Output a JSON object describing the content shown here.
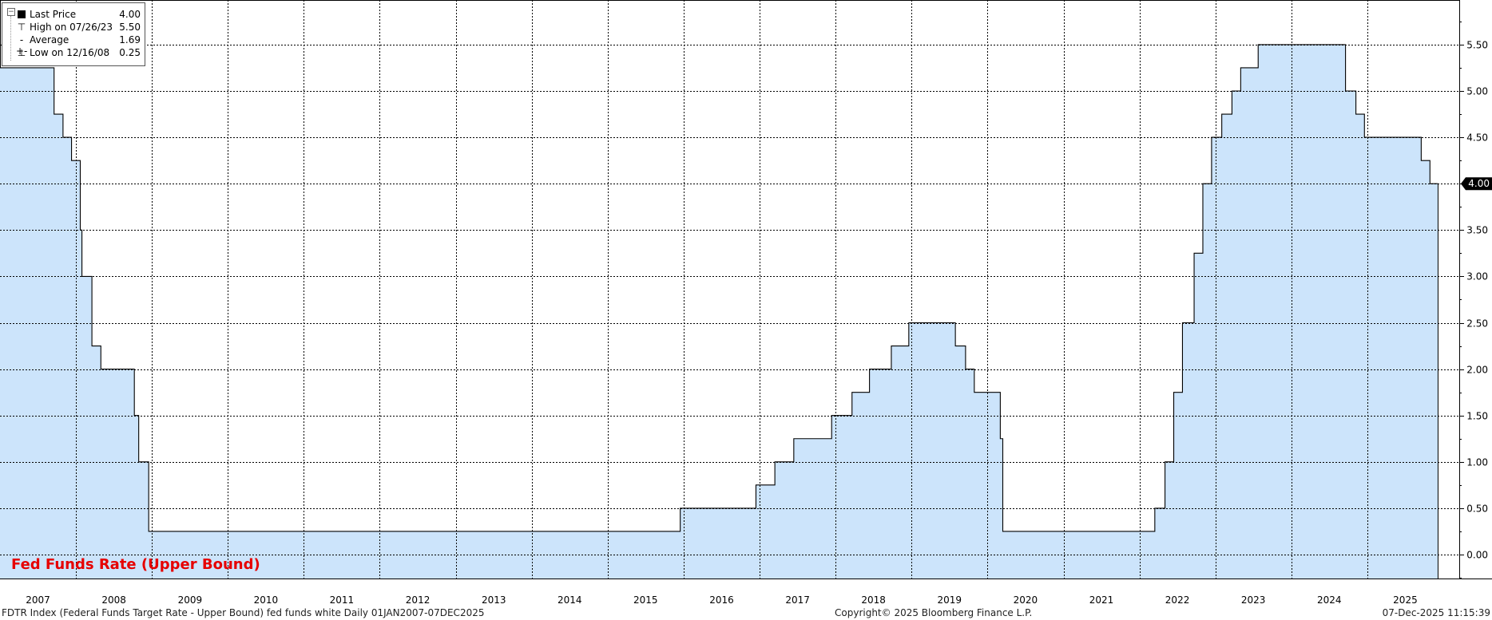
{
  "legend": {
    "last_price_label": "Last Price",
    "last_price_value": "4.00",
    "high_label": "High on 07/26/23",
    "high_value": "5.50",
    "average_label": "Average",
    "average_value": "1.69",
    "low_label": "Low on 12/16/08",
    "low_value": "0.25"
  },
  "footer": {
    "left": "FDTR Index (Federal Funds Target Rate - Upper Bound) fed funds white Daily 01JAN2007-07DEC2025",
    "center": "Copyright© 2025 Bloomberg Finance L.P.",
    "right": "07-Dec-2025 11:15:39"
  },
  "colors": {
    "fill": "#cce4fb",
    "line": "#000000",
    "title": "#e60000",
    "grid": "#000000",
    "last_price_tag_bg": "#000000",
    "last_price_tag_text": "#ffffff"
  },
  "chart_data": {
    "type": "area",
    "title": "Fed Funds Rate (Upper Bound)",
    "xlabel": "",
    "ylabel": "",
    "x_range": [
      "2007-01-01",
      "2025-12-07"
    ],
    "ylim": [
      -0.25,
      6.0
    ],
    "y_ticks": [
      0.0,
      0.5,
      1.0,
      1.5,
      2.0,
      2.5,
      3.0,
      3.5,
      4.0,
      4.5,
      5.0,
      5.5
    ],
    "y_tick_labels": [
      "0.00",
      "0.50",
      "1.00",
      "1.50",
      "2.00",
      "2.50",
      "3.00",
      "3.50",
      "4.00",
      "4.50",
      "5.00",
      "5.50"
    ],
    "x_tick_labels": [
      "2007",
      "2008",
      "2009",
      "2010",
      "2011",
      "2012",
      "2013",
      "2014",
      "2015",
      "2016",
      "2017",
      "2018",
      "2019",
      "2020",
      "2021",
      "2022",
      "2023",
      "2024",
      "2025"
    ],
    "grid": true,
    "legend_position": "top-left",
    "last_value_label": "4.00",
    "step_series": [
      {
        "date": "2007-01-01",
        "value": 5.25
      },
      {
        "date": "2007-09-18",
        "value": 4.75
      },
      {
        "date": "2007-10-31",
        "value": 4.5
      },
      {
        "date": "2007-12-11",
        "value": 4.25
      },
      {
        "date": "2008-01-22",
        "value": 3.5
      },
      {
        "date": "2008-01-30",
        "value": 3.0
      },
      {
        "date": "2008-03-18",
        "value": 2.25
      },
      {
        "date": "2008-04-30",
        "value": 2.0
      },
      {
        "date": "2008-10-08",
        "value": 1.5
      },
      {
        "date": "2008-10-29",
        "value": 1.0
      },
      {
        "date": "2008-12-16",
        "value": 0.25
      },
      {
        "date": "2015-12-16",
        "value": 0.5
      },
      {
        "date": "2016-12-14",
        "value": 0.75
      },
      {
        "date": "2017-03-15",
        "value": 1.0
      },
      {
        "date": "2017-06-14",
        "value": 1.25
      },
      {
        "date": "2017-12-13",
        "value": 1.5
      },
      {
        "date": "2018-03-21",
        "value": 1.75
      },
      {
        "date": "2018-06-13",
        "value": 2.0
      },
      {
        "date": "2018-09-26",
        "value": 2.25
      },
      {
        "date": "2018-12-19",
        "value": 2.5
      },
      {
        "date": "2019-07-31",
        "value": 2.25
      },
      {
        "date": "2019-09-18",
        "value": 2.0
      },
      {
        "date": "2019-10-30",
        "value": 1.75
      },
      {
        "date": "2020-03-03",
        "value": 1.25
      },
      {
        "date": "2020-03-15",
        "value": 0.25
      },
      {
        "date": "2022-03-16",
        "value": 0.5
      },
      {
        "date": "2022-05-04",
        "value": 1.0
      },
      {
        "date": "2022-06-15",
        "value": 1.75
      },
      {
        "date": "2022-07-27",
        "value": 2.5
      },
      {
        "date": "2022-09-21",
        "value": 3.25
      },
      {
        "date": "2022-11-02",
        "value": 4.0
      },
      {
        "date": "2022-12-14",
        "value": 4.5
      },
      {
        "date": "2023-02-01",
        "value": 4.75
      },
      {
        "date": "2023-03-22",
        "value": 5.0
      },
      {
        "date": "2023-05-03",
        "value": 5.25
      },
      {
        "date": "2023-07-26",
        "value": 5.5
      },
      {
        "date": "2024-09-18",
        "value": 5.0
      },
      {
        "date": "2024-11-07",
        "value": 4.75
      },
      {
        "date": "2024-12-18",
        "value": 4.5
      },
      {
        "date": "2025-09-17",
        "value": 4.25
      },
      {
        "date": "2025-10-29",
        "value": 4.0
      },
      {
        "date": "2025-12-07",
        "value": 4.0
      }
    ]
  }
}
